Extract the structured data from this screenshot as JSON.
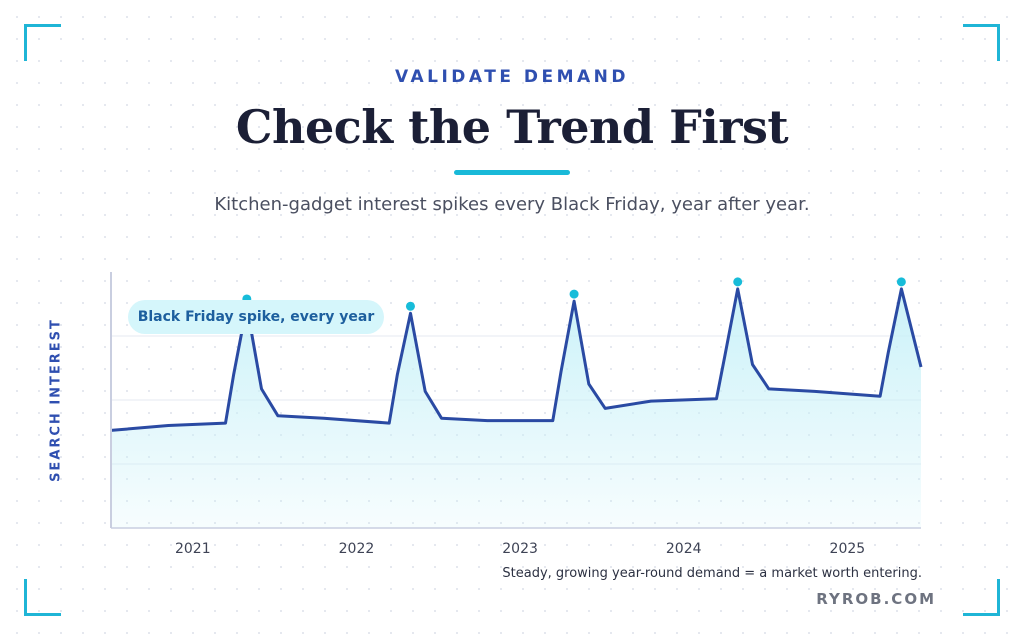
{
  "header": {
    "eyebrow": "VALIDATE DEMAND",
    "title": "Check the Trend First",
    "subtitle": "Kitchen-gadget interest spikes every Black Friday, year after year."
  },
  "chart_data": {
    "type": "area",
    "title": "",
    "xlabel": "",
    "ylabel": "SEARCH INTEREST",
    "xlim": [
      2020.5,
      2025.45
    ],
    "ylim": [
      0,
      100
    ],
    "grid": "horizontal",
    "x_ticks": [
      "2021",
      "2022",
      "2023",
      "2024",
      "2025"
    ],
    "series": [
      {
        "x": [
          2020.5,
          2020.85,
          2021.2,
          2021.25,
          2021.33,
          2021.42,
          2021.52,
          2021.8,
          2022.2,
          2022.25,
          2022.33,
          2022.42,
          2022.52,
          2022.8,
          2023.2,
          2023.25,
          2023.33,
          2023.42,
          2023.52,
          2023.8,
          2024.2,
          2024.25,
          2024.33,
          2024.42,
          2024.52,
          2024.8,
          2025.2,
          2025.25,
          2025.33,
          2025.45
        ],
        "y": [
          40,
          42,
          43,
          63,
          91,
          57,
          46,
          45,
          43,
          63,
          88,
          56,
          45,
          44,
          44,
          64,
          93,
          59,
          49,
          52,
          53,
          70,
          98,
          67,
          57,
          56,
          54,
          72,
          98,
          66
        ]
      }
    ],
    "peak_markers": [
      {
        "x": 2021.33,
        "y": 91
      },
      {
        "x": 2022.33,
        "y": 88
      },
      {
        "x": 2023.33,
        "y": 93
      },
      {
        "x": 2024.33,
        "y": 98
      },
      {
        "x": 2025.33,
        "y": 98
      }
    ],
    "annotation": "Black Friday spike, every year",
    "colors": {
      "line": "#2a4aa3",
      "fill_top": "#c8f1f8",
      "marker": "#17bcd9"
    }
  },
  "footer": {
    "caption": "Steady, growing year-round demand = a market worth entering.",
    "brand": "RYROB.COM"
  }
}
